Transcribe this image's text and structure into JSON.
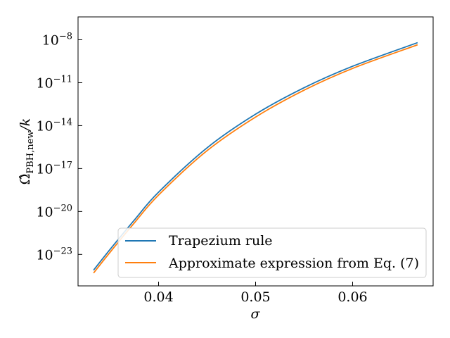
{
  "chart_data": {
    "type": "line",
    "title": "",
    "xlabel": "σ",
    "ylabel_main": "Ω̂",
    "ylabel_sub": "PBH,new",
    "ylabel_tail": "/k",
    "xlim": [
      0.0317,
      0.0683
    ],
    "ylim_log10": [
      -25.2,
      -6.4
    ],
    "yscale": "log",
    "x_ticks": [
      {
        "value": 0.04,
        "label": "0.04"
      },
      {
        "value": 0.05,
        "label": "0.05"
      },
      {
        "value": 0.06,
        "label": "0.06"
      }
    ],
    "y_ticks": [
      {
        "exp": -8,
        "base": "10",
        "sup": "−8"
      },
      {
        "exp": -11,
        "base": "10",
        "sup": "−11"
      },
      {
        "exp": -14,
        "base": "10",
        "sup": "−14"
      },
      {
        "exp": -17,
        "base": "10",
        "sup": "−17"
      },
      {
        "exp": -20,
        "base": "10",
        "sup": "−20"
      },
      {
        "exp": -23,
        "base": "10",
        "sup": "−23"
      }
    ],
    "legend_position": "lower-right",
    "grid": false,
    "series": [
      {
        "name": "Trapezium rule",
        "color": "#1f77b4",
        "x": [
          0.0333,
          0.035,
          0.0375,
          0.04,
          0.045,
          0.05,
          0.055,
          0.06,
          0.0667
        ],
        "log10_y": [
          -24.1,
          -22.65,
          -20.6,
          -18.65,
          -15.55,
          -13.2,
          -11.35,
          -9.85,
          -8.2
        ]
      },
      {
        "name": "Approximate expression from Eq. (7)",
        "color": "#ff7f0e",
        "x": [
          0.0333,
          0.035,
          0.0375,
          0.04,
          0.045,
          0.05,
          0.055,
          0.06,
          0.0667
        ],
        "log10_y": [
          -24.3,
          -22.85,
          -20.8,
          -18.85,
          -15.75,
          -13.4,
          -11.52,
          -10.0,
          -8.35
        ]
      }
    ]
  }
}
